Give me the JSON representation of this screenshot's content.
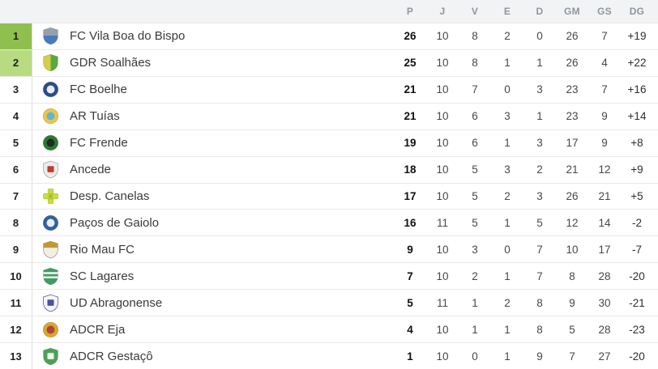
{
  "table": {
    "header": {
      "cols": [
        "P",
        "J",
        "V",
        "E",
        "D",
        "GM",
        "GS",
        "DG"
      ]
    },
    "rows": [
      {
        "pos": "1",
        "team": "FC Vila Boa do Bispo",
        "p": "26",
        "j": "10",
        "v": "8",
        "e": "2",
        "d": "0",
        "gm": "26",
        "gs": "7",
        "dg": "+19",
        "highlight": "promotion_primary",
        "crest": {
          "shape": "shield",
          "split": "bottom",
          "primary": "#94a0ab",
          "secondary": "#4a79bd"
        }
      },
      {
        "pos": "2",
        "team": "GDR Soalhães",
        "p": "25",
        "j": "10",
        "v": "8",
        "e": "1",
        "d": "1",
        "gm": "26",
        "gs": "4",
        "dg": "+22",
        "highlight": "promotion_secondary",
        "crest": {
          "shape": "shield",
          "split": "right",
          "primary": "#d4ce49",
          "secondary": "#5aa83f"
        }
      },
      {
        "pos": "3",
        "team": "FC Boelhe",
        "p": "21",
        "j": "10",
        "v": "7",
        "e": "0",
        "d": "3",
        "gm": "23",
        "gs": "7",
        "dg": "+16",
        "highlight": null,
        "crest": {
          "shape": "circle",
          "split": "none",
          "primary": "#2b4b8f",
          "secondary": "#e7ecf5"
        }
      },
      {
        "pos": "4",
        "team": "AR Tuías",
        "p": "21",
        "j": "10",
        "v": "6",
        "e": "3",
        "d": "1",
        "gm": "23",
        "gs": "9",
        "dg": "+14",
        "highlight": null,
        "crest": {
          "shape": "circle",
          "split": "none",
          "primary": "#eec73d",
          "secondary": "#5db4e4"
        }
      },
      {
        "pos": "5",
        "team": "FC Frende",
        "p": "19",
        "j": "10",
        "v": "6",
        "e": "1",
        "d": "3",
        "gm": "17",
        "gs": "9",
        "dg": "+8",
        "highlight": null,
        "crest": {
          "shape": "circle",
          "split": "none",
          "primary": "#2a7a33",
          "secondary": "#232a21"
        }
      },
      {
        "pos": "6",
        "team": "Ancede",
        "p": "18",
        "j": "10",
        "v": "5",
        "e": "3",
        "d": "2",
        "gm": "21",
        "gs": "12",
        "dg": "+9",
        "highlight": null,
        "crest": {
          "shape": "shield",
          "split": "center",
          "primary": "#ececea",
          "secondary": "#c03a31",
          "stroke": "#a0a0a0"
        }
      },
      {
        "pos": "7",
        "team": "Desp. Canelas",
        "p": "17",
        "j": "10",
        "v": "5",
        "e": "2",
        "d": "3",
        "gm": "26",
        "gs": "21",
        "dg": "+5",
        "highlight": null,
        "crest": {
          "shape": "cross",
          "split": "none",
          "primary": "#cadc3c",
          "secondary": "#a7b82a"
        }
      },
      {
        "pos": "8",
        "team": "Paços de Gaiolo",
        "p": "16",
        "j": "11",
        "v": "5",
        "e": "1",
        "d": "5",
        "gm": "12",
        "gs": "14",
        "dg": "-2",
        "highlight": null,
        "crest": {
          "shape": "circle",
          "split": "none",
          "primary": "#33619f",
          "secondary": "#e9eef6"
        }
      },
      {
        "pos": "9",
        "team": "Rio Mau FC",
        "p": "9",
        "j": "10",
        "v": "3",
        "e": "0",
        "d": "7",
        "gm": "10",
        "gs": "17",
        "dg": "-7",
        "highlight": null,
        "crest": {
          "shape": "shield",
          "split": "top",
          "primary": "#f1efe6",
          "secondary": "#bf9a2f",
          "stroke": "#9b9884"
        }
      },
      {
        "pos": "10",
        "team": "SC Lagares",
        "p": "7",
        "j": "10",
        "v": "2",
        "e": "1",
        "d": "7",
        "gm": "8",
        "gs": "28",
        "dg": "-20",
        "highlight": null,
        "crest": {
          "shape": "shield",
          "split": "stripes",
          "primary": "#3f9d62",
          "secondary": "#f2f7f3"
        }
      },
      {
        "pos": "11",
        "team": "UD Abragonense",
        "p": "5",
        "j": "11",
        "v": "1",
        "e": "2",
        "d": "8",
        "gm": "9",
        "gs": "30",
        "dg": "-21",
        "highlight": null,
        "crest": {
          "shape": "shield",
          "split": "center",
          "primary": "#f4f6fc",
          "secondary": "#47539f",
          "stroke": "#47539f"
        }
      },
      {
        "pos": "12",
        "team": "ADCR Eja",
        "p": "4",
        "j": "10",
        "v": "1",
        "e": "1",
        "d": "8",
        "gm": "5",
        "gs": "28",
        "dg": "-23",
        "highlight": null,
        "crest": {
          "shape": "circle",
          "split": "none",
          "primary": "#d9a72c",
          "secondary": "#b04437"
        }
      },
      {
        "pos": "13",
        "team": "ADCR Gestaçô",
        "p": "1",
        "j": "10",
        "v": "0",
        "e": "1",
        "d": "9",
        "gm": "7",
        "gs": "27",
        "dg": "-20",
        "highlight": null,
        "crest": {
          "shape": "shield",
          "split": "center",
          "primary": "#4aa257",
          "secondary": "#eef6ed"
        }
      }
    ],
    "colors": {
      "promotion_primary": "#8fbf4f",
      "promotion_secondary": "#b8db81",
      "header_bg": "#f2f3f4",
      "header_text": "#8f96a0",
      "row_bg": "#ffffff",
      "row_border": "#e9e9e9",
      "separator": "#dcdcdc",
      "team_text": "#3a3a3a",
      "number_text": "#474747",
      "points_text": "#111111",
      "dg_text": "#2e2e2e",
      "position_text": "#1f1f1f"
    }
  }
}
